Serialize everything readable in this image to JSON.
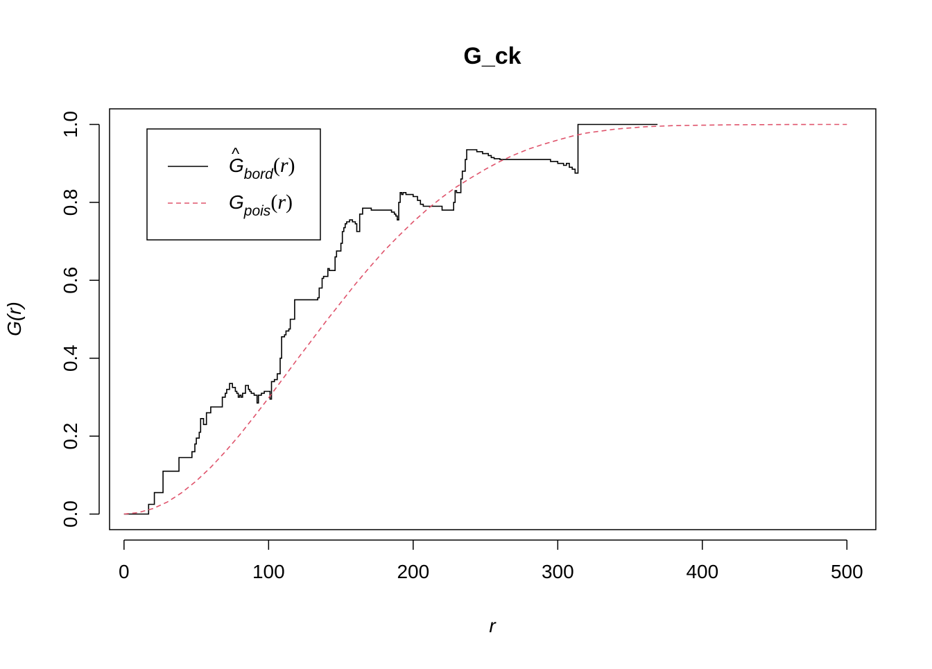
{
  "chart_data": {
    "type": "line",
    "title": "G_ck",
    "xlabel": "r",
    "ylabel": "G(r)",
    "xlim": [
      -10,
      520
    ],
    "ylim": [
      -0.04,
      1.04
    ],
    "x_ticks": [
      0,
      100,
      200,
      300,
      400,
      500
    ],
    "y_ticks": [
      0.0,
      0.2,
      0.4,
      0.6,
      0.8,
      1.0
    ],
    "x_tick_labels": [
      "0",
      "100",
      "200",
      "300",
      "400",
      "500"
    ],
    "y_tick_labels": [
      "0.0",
      "0.2",
      "0.4",
      "0.6",
      "0.8",
      "1.0"
    ],
    "legend_position": "top-left",
    "series": [
      {
        "name": "Ĝ_bord(r)",
        "legend_main": "G",
        "legend_sub": "bord",
        "hat": true,
        "color": "#000000",
        "dash": "solid",
        "step": true,
        "x": [
          0,
          16,
          17,
          19,
          21,
          25,
          27,
          36,
          38,
          46,
          47,
          49,
          50,
          52,
          53,
          55,
          57,
          60,
          67,
          68,
          70,
          71,
          73,
          75,
          77,
          78,
          79,
          80,
          81,
          82,
          84,
          86,
          87,
          88,
          90,
          92,
          93,
          95,
          97,
          101,
          102,
          104,
          106,
          108,
          109,
          111,
          112,
          114,
          115,
          118,
          129,
          134,
          135,
          137,
          138,
          141,
          142,
          146,
          147,
          150,
          151,
          152,
          153,
          154,
          156,
          158,
          160,
          161,
          163,
          165,
          171,
          174,
          185,
          187,
          188,
          189,
          190,
          191,
          192,
          193,
          195,
          197,
          200,
          203,
          205,
          207,
          209,
          211,
          215,
          220,
          226,
          228,
          229,
          230,
          233,
          234,
          236,
          237,
          238,
          240,
          242,
          244,
          246,
          248,
          250,
          252,
          254,
          256,
          258,
          260,
          262,
          264,
          266,
          268,
          270,
          275,
          280,
          285,
          290,
          295,
          300,
          302,
          304,
          306,
          308,
          310,
          312,
          314,
          316,
          320,
          340,
          369
        ],
        "y": [
          0.0,
          0.0,
          0.025,
          0.025,
          0.055,
          0.055,
          0.11,
          0.11,
          0.145,
          0.145,
          0.16,
          0.18,
          0.195,
          0.21,
          0.245,
          0.23,
          0.26,
          0.275,
          0.275,
          0.3,
          0.31,
          0.32,
          0.335,
          0.325,
          0.315,
          0.31,
          0.3,
          0.305,
          0.3,
          0.31,
          0.33,
          0.32,
          0.315,
          0.31,
          0.305,
          0.285,
          0.305,
          0.31,
          0.315,
          0.295,
          0.34,
          0.345,
          0.36,
          0.4,
          0.455,
          0.46,
          0.47,
          0.475,
          0.5,
          0.55,
          0.55,
          0.555,
          0.58,
          0.605,
          0.61,
          0.63,
          0.625,
          0.66,
          0.675,
          0.695,
          0.725,
          0.735,
          0.745,
          0.75,
          0.755,
          0.75,
          0.745,
          0.725,
          0.77,
          0.785,
          0.78,
          0.78,
          0.775,
          0.77,
          0.765,
          0.755,
          0.8,
          0.825,
          0.82,
          0.825,
          0.82,
          0.82,
          0.815,
          0.805,
          0.795,
          0.79,
          0.79,
          0.79,
          0.79,
          0.78,
          0.78,
          0.8,
          0.83,
          0.825,
          0.86,
          0.88,
          0.91,
          0.935,
          0.935,
          0.935,
          0.935,
          0.93,
          0.93,
          0.925,
          0.925,
          0.92,
          0.915,
          0.912,
          0.912,
          0.91,
          0.91,
          0.91,
          0.91,
          0.91,
          0.91,
          0.91,
          0.91,
          0.91,
          0.91,
          0.905,
          0.9,
          0.9,
          0.895,
          0.9,
          0.89,
          0.885,
          0.875,
          1.0,
          1.0,
          1.0,
          1.0,
          1.0
        ]
      },
      {
        "name": "G_pois(r)",
        "legend_main": "G",
        "legend_sub": "pois",
        "hat": false,
        "color": "#DF536B",
        "dash": "dashed",
        "step": false,
        "x": [
          0,
          10,
          20,
          30,
          40,
          50,
          60,
          70,
          80,
          90,
          100,
          110,
          120,
          130,
          140,
          150,
          160,
          170,
          180,
          190,
          200,
          210,
          220,
          230,
          240,
          250,
          260,
          270,
          280,
          290,
          300,
          310,
          320,
          340,
          360,
          380,
          400,
          420,
          440,
          460,
          480,
          500
        ],
        "y": [
          0.0,
          0.004,
          0.014,
          0.031,
          0.055,
          0.085,
          0.12,
          0.16,
          0.203,
          0.25,
          0.298,
          0.348,
          0.398,
          0.447,
          0.496,
          0.543,
          0.59,
          0.634,
          0.676,
          0.714,
          0.75,
          0.783,
          0.813,
          0.84,
          0.863,
          0.885,
          0.905,
          0.922,
          0.937,
          0.949,
          0.96,
          0.97,
          0.978,
          0.988,
          0.994,
          0.997,
          0.998,
          0.999,
          0.9995,
          0.9998,
          0.9999,
          1.0
        ]
      }
    ]
  }
}
